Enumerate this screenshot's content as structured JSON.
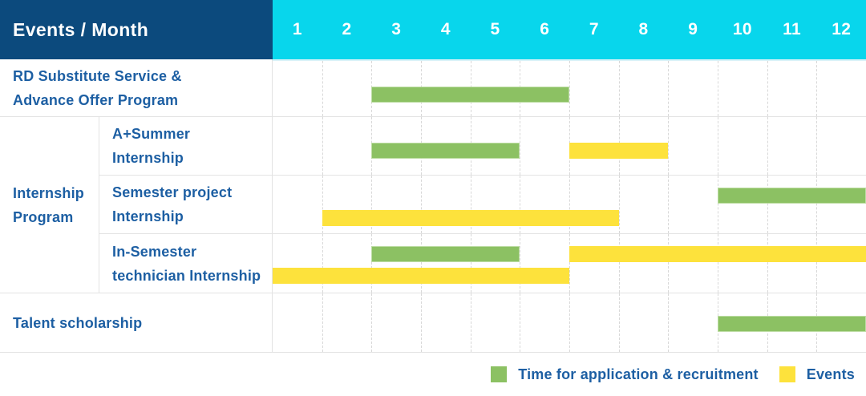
{
  "header": {
    "title": "Events / Month",
    "months": [
      "1",
      "2",
      "3",
      "4",
      "5",
      "6",
      "7",
      "8",
      "9",
      "10",
      "11",
      "12"
    ]
  },
  "group": {
    "label": "Internship Program",
    "label_lines": [
      "Internship",
      "Program"
    ]
  },
  "rows": [
    {
      "label": "RD Substitute Service & Advance Offer Program",
      "label_lines": [
        "RD Substitute Service &",
        "Advance Offer Program"
      ],
      "bars": [
        {
          "kind": "application",
          "start": 3,
          "end": 6,
          "lane": 0
        }
      ]
    },
    {
      "label": "A+Summer Internship",
      "label_lines": [
        "A+Summer",
        "Internship"
      ],
      "bars": [
        {
          "kind": "application",
          "start": 3,
          "end": 5,
          "lane": 0
        },
        {
          "kind": "event",
          "start": 7,
          "end": 8,
          "lane": 0
        }
      ]
    },
    {
      "label": "Semester project Internship",
      "label_lines": [
        "Semester project",
        "Internship"
      ],
      "bars": [
        {
          "kind": "application",
          "start": 10,
          "end": 12,
          "lane": 0
        },
        {
          "kind": "event",
          "start": 2,
          "end": 7,
          "lane": 1
        }
      ]
    },
    {
      "label": "In-Semester technician Internship",
      "label_lines": [
        "In-Semester",
        "technician Internship"
      ],
      "bars": [
        {
          "kind": "application",
          "start": 3,
          "end": 5,
          "lane": 0
        },
        {
          "kind": "event",
          "start": 7,
          "end": 12,
          "lane": 0
        },
        {
          "kind": "event",
          "start": 1,
          "end": 6,
          "lane": 1
        }
      ]
    },
    {
      "label": "Talent scholarship",
      "label_lines": [
        "Talent scholarship"
      ],
      "bars": [
        {
          "kind": "application",
          "start": 10,
          "end": 12,
          "lane": 0
        }
      ]
    }
  ],
  "legend": [
    {
      "kind": "application",
      "label": "Time for application & recruitment"
    },
    {
      "kind": "event",
      "label": "Events"
    }
  ],
  "colors": {
    "header_navy": "#0c4a7d",
    "header_cyan": "#08d6ec",
    "application_green": "#8cc163",
    "event_yellow": "#fde23c",
    "label_blue": "#1d5fa3",
    "grid_gray": "#e3e3e3"
  },
  "chart_data": {
    "type": "gantt",
    "title": "Events / Month",
    "x_months": [
      1,
      2,
      3,
      4,
      5,
      6,
      7,
      8,
      9,
      10,
      11,
      12
    ],
    "x_range": [
      1,
      12
    ],
    "grid": true,
    "legend_position": "bottom-right",
    "legend": [
      "Time for application & recruitment",
      "Events"
    ],
    "rows": [
      {
        "group": "",
        "label": "RD Substitute Service & Advance Offer Program",
        "bars": [
          {
            "category": "Time for application & recruitment",
            "start_month": 3,
            "end_month": 6
          }
        ]
      },
      {
        "group": "Internship Program",
        "label": "A+Summer Internship",
        "bars": [
          {
            "category": "Time for application & recruitment",
            "start_month": 3,
            "end_month": 5
          },
          {
            "category": "Events",
            "start_month": 7,
            "end_month": 8
          }
        ]
      },
      {
        "group": "Internship Program",
        "label": "Semester project Internship",
        "bars": [
          {
            "category": "Time for application & recruitment",
            "start_month": 10,
            "end_month": 12
          },
          {
            "category": "Events",
            "start_month": 2,
            "end_month": 7
          }
        ]
      },
      {
        "group": "Internship Program",
        "label": "In-Semester technician Internship",
        "bars": [
          {
            "category": "Time for application & recruitment",
            "start_month": 3,
            "end_month": 5
          },
          {
            "category": "Events",
            "start_month": 7,
            "end_month": 12
          },
          {
            "category": "Events",
            "start_month": 1,
            "end_month": 6
          }
        ]
      },
      {
        "group": "",
        "label": "Talent scholarship",
        "bars": [
          {
            "category": "Time for application & recruitment",
            "start_month": 10,
            "end_month": 12
          }
        ]
      }
    ]
  }
}
